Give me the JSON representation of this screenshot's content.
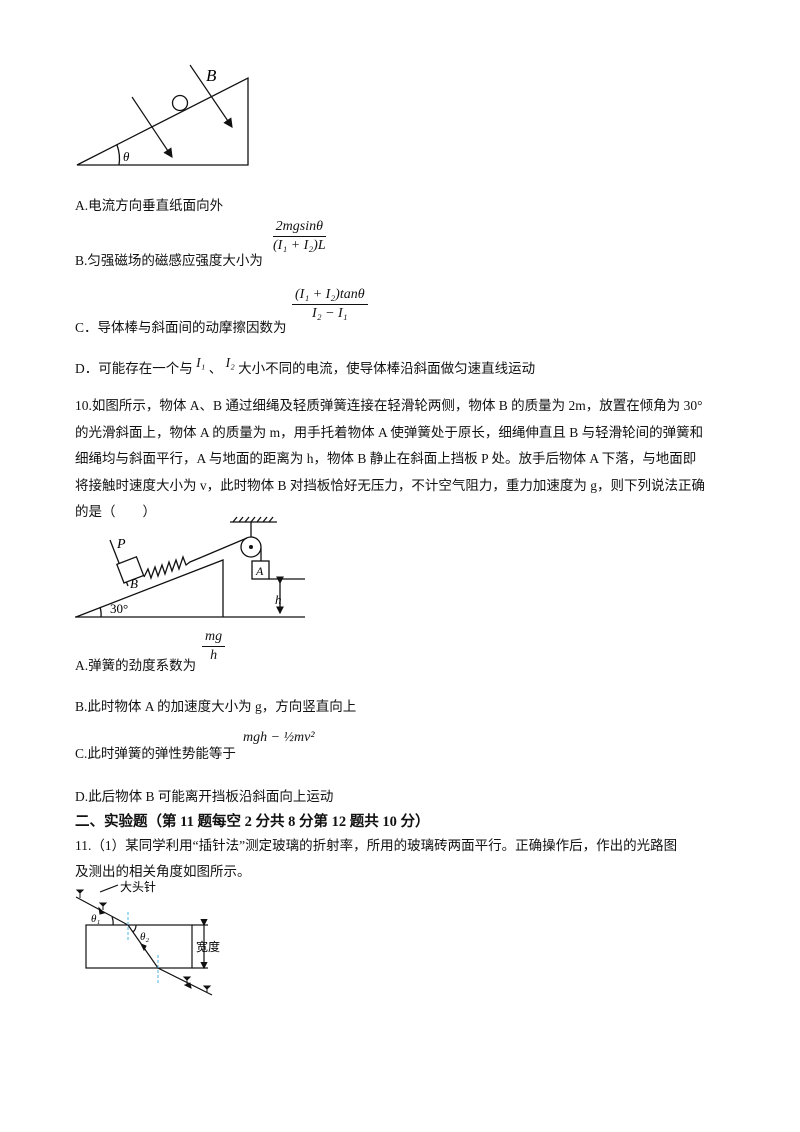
{
  "q9": {
    "figure": {
      "label_B": "B",
      "label_theta": "θ"
    },
    "options": {
      "A": "A.电流方向垂直纸面向外",
      "B": "B.匀强磁场的磁感应强度大小为",
      "B_formula_num": "2mgsinθ",
      "B_formula_den": "(I₁ + I₂)L",
      "C": "C．导体棒与斜面间的动摩擦因数为",
      "C_formula_num": "(I₁ + I₂)tanθ",
      "C_formula_den": "I₂ − I₁",
      "D_prefix": "D．可能存在一个与",
      "D_I1": "I₁",
      "D_sep": "、",
      "D_I2": "I₂",
      "D_suffix": "大小不同的电流，使导体棒沿斜面做匀速直线运动"
    }
  },
  "q10": {
    "lines": [
      "10.如图所示，物体 A、B 通过细绳及轻质弹簧连接在轻滑轮两侧，物体 B 的质量为 2m，放置在倾角为 30°",
      "的光滑斜面上，物体 A 的质量为 m，用手托着物体 A 使弹簧处于原长，细绳伸直且 B 与轻滑轮间的弹簧和",
      "细绳均与斜面平行，A 与地面的距离为 h，物体 B 静止在斜面上挡板 P 处。放手后物体 A 下落，与地面即",
      "将接触时速度大小为 v，此时物体 B 对挡板恰好无压力，不计空气阻力，重力加速度为 g，则下列说法正确",
      "的是（　　）"
    ],
    "figure": {
      "label_P": "P",
      "label_B": "B",
      "label_A": "A",
      "label_h": "h",
      "label_angle": "30°"
    },
    "options": {
      "A": "A.弹簧的劲度系数为",
      "A_formula_num": "mg",
      "A_formula_den": "h",
      "B": "B.此时物体 A 的加速度大小为 g，方向竖直向上",
      "C": "C.此时弹簧的弹性势能等于",
      "C_formula": "mgh − ½mv²",
      "D": "D.此后物体 B 可能离开挡板沿斜面向上运动"
    }
  },
  "section2": {
    "heading": "二、实验题（第 11 题每空 2 分共 8 分第 12 题共 10 分）"
  },
  "q11": {
    "lines": [
      "11.（1）某同学利用“插针法”测定玻璃的折射率，所用的玻璃砖两面平行。正确操作后，作出的光路图",
      "及测出的相关角度如图所示。"
    ],
    "figure": {
      "label_pin": "大头针",
      "label_theta1": "θ₁",
      "label_theta2": "θ₂",
      "label_width": "宽度",
      "normal_color": "#4fb3e0"
    }
  }
}
